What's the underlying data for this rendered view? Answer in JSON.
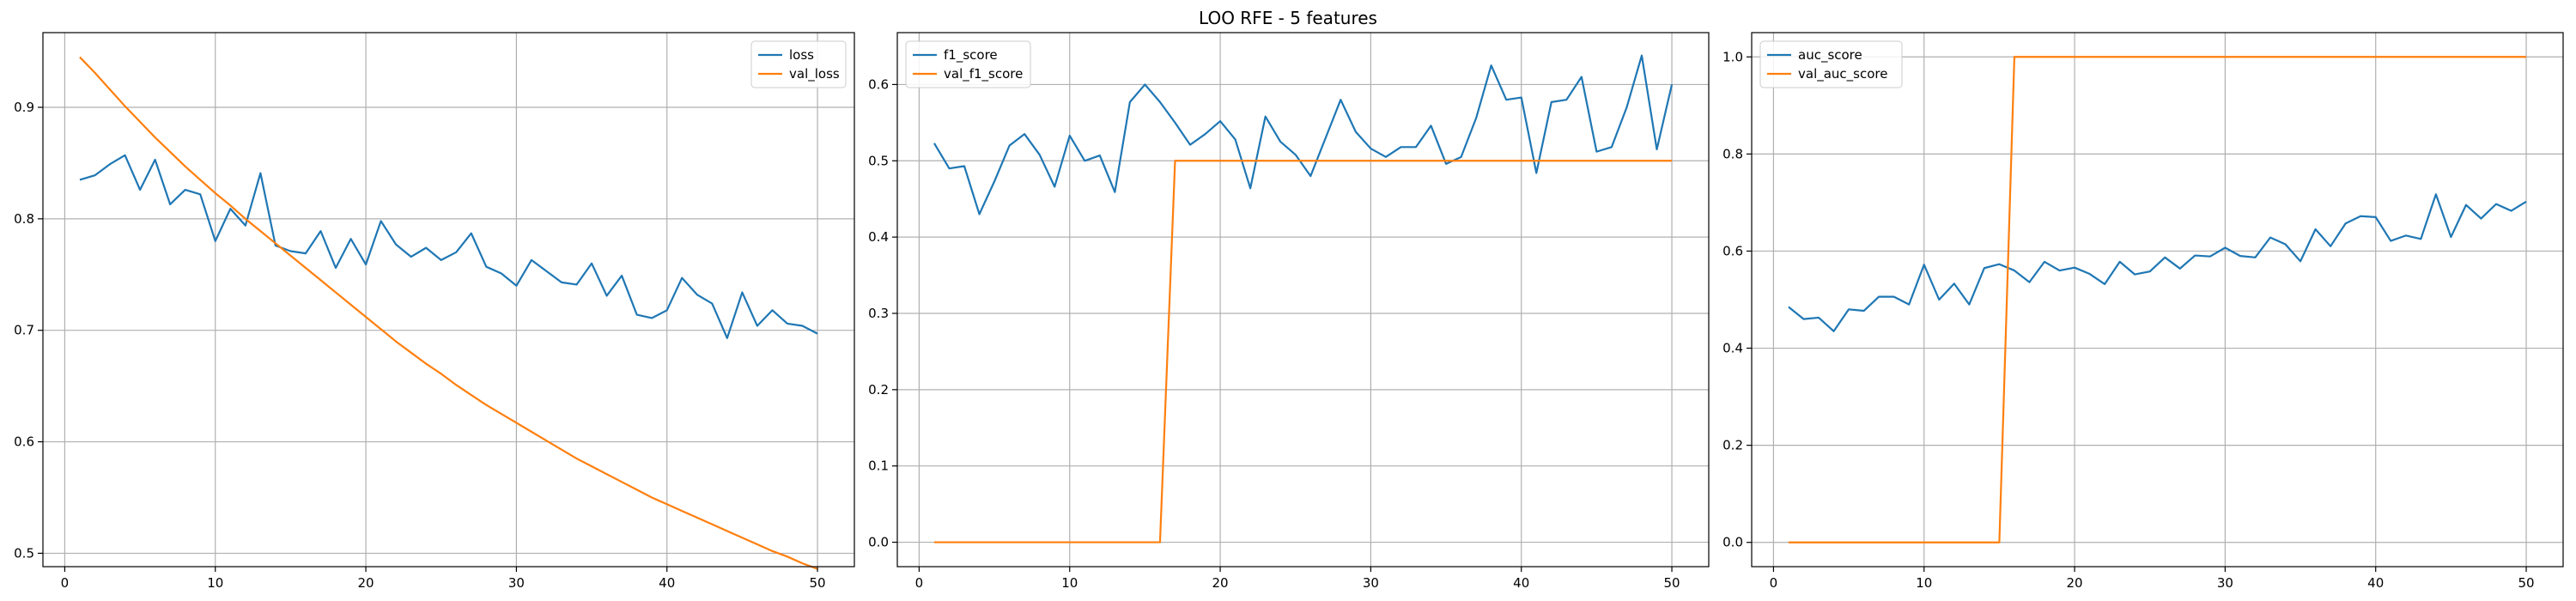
{
  "figure": {
    "title": "LOO RFE - 5 features"
  },
  "chart_data": [
    {
      "type": "line",
      "title": "",
      "xlabel": "",
      "ylabel": "",
      "grid": true,
      "legend": "top-right",
      "xlim": [
        -1.45,
        52.45
      ],
      "ylim": [
        0.488,
        0.967
      ],
      "xticks": [
        0,
        10,
        20,
        30,
        40,
        50
      ],
      "yticks": [
        0.5,
        0.6,
        0.7,
        0.8,
        0.9
      ],
      "ytick_labels": [
        "0.5",
        "0.6",
        "0.7",
        "0.8",
        "0.9"
      ],
      "x": [
        1,
        2,
        3,
        4,
        5,
        6,
        7,
        8,
        9,
        10,
        11,
        12,
        13,
        14,
        15,
        16,
        17,
        18,
        19,
        20,
        21,
        22,
        23,
        24,
        25,
        26,
        27,
        28,
        29,
        30,
        31,
        32,
        33,
        34,
        35,
        36,
        37,
        38,
        39,
        40,
        41,
        42,
        43,
        44,
        45,
        46,
        47,
        48,
        49,
        50
      ],
      "series": [
        {
          "name": "loss",
          "color": "#1f77b4",
          "values": [
            0.835,
            0.839,
            0.849,
            0.857,
            0.826,
            0.853,
            0.813,
            0.826,
            0.822,
            0.78,
            0.809,
            0.794,
            0.841,
            0.776,
            0.771,
            0.769,
            0.789,
            0.756,
            0.782,
            0.759,
            0.798,
            0.777,
            0.766,
            0.774,
            0.763,
            0.77,
            0.787,
            0.757,
            0.751,
            0.74,
            0.763,
            0.753,
            0.743,
            0.741,
            0.76,
            0.731,
            0.749,
            0.714,
            0.711,
            0.718,
            0.747,
            0.732,
            0.724,
            0.693,
            0.734,
            0.704,
            0.718,
            0.706,
            0.704,
            0.697
          ]
        },
        {
          "name": "val_loss",
          "color": "#ff7f0e",
          "values": [
            0.945,
            0.931,
            0.916,
            0.901,
            0.887,
            0.873,
            0.86,
            0.847,
            0.835,
            0.823,
            0.812,
            0.8,
            0.789,
            0.778,
            0.767,
            0.756,
            0.745,
            0.734,
            0.723,
            0.712,
            0.701,
            0.69,
            0.68,
            0.67,
            0.661,
            0.651,
            0.642,
            0.633,
            0.625,
            0.617,
            0.609,
            0.601,
            0.593,
            0.585,
            0.578,
            0.571,
            0.564,
            0.557,
            0.55,
            0.544,
            0.538,
            0.532,
            0.526,
            0.52,
            0.514,
            0.508,
            0.502,
            0.497,
            0.491,
            0.486
          ]
        }
      ]
    },
    {
      "type": "line",
      "title": "",
      "xlabel": "",
      "ylabel": "",
      "grid": true,
      "legend": "top-left",
      "xlim": [
        -1.45,
        52.45
      ],
      "ylim": [
        -0.032,
        0.668
      ],
      "xticks": [
        0,
        10,
        20,
        30,
        40,
        50
      ],
      "yticks": [
        0.0,
        0.1,
        0.2,
        0.3,
        0.4,
        0.5,
        0.6
      ],
      "ytick_labels": [
        "0.0",
        "0.1",
        "0.2",
        "0.3",
        "0.4",
        "0.5",
        "0.6"
      ],
      "x": [
        1,
        2,
        3,
        4,
        5,
        6,
        7,
        8,
        9,
        10,
        11,
        12,
        13,
        14,
        15,
        16,
        17,
        18,
        19,
        20,
        21,
        22,
        23,
        24,
        25,
        26,
        27,
        28,
        29,
        30,
        31,
        32,
        33,
        34,
        35,
        36,
        37,
        38,
        39,
        40,
        41,
        42,
        43,
        44,
        45,
        46,
        47,
        48,
        49,
        50
      ],
      "series": [
        {
          "name": "f1_score",
          "color": "#1f77b4",
          "values": [
            0.523,
            0.49,
            0.493,
            0.43,
            0.473,
            0.52,
            0.535,
            0.508,
            0.466,
            0.533,
            0.5,
            0.507,
            0.459,
            0.577,
            0.6,
            0.577,
            0.55,
            0.521,
            0.535,
            0.552,
            0.528,
            0.464,
            0.558,
            0.525,
            0.508,
            0.48,
            0.53,
            0.58,
            0.538,
            0.516,
            0.505,
            0.518,
            0.518,
            0.546,
            0.496,
            0.505,
            0.556,
            0.625,
            0.58,
            0.583,
            0.484,
            0.577,
            0.58,
            0.61,
            0.512,
            0.518,
            0.57,
            0.638,
            0.515,
            0.6
          ]
        },
        {
          "name": "val_f1_score",
          "color": "#ff7f0e",
          "values": [
            0,
            0,
            0,
            0,
            0,
            0,
            0,
            0,
            0,
            0,
            0,
            0,
            0,
            0,
            0,
            0,
            0.5,
            0.5,
            0.5,
            0.5,
            0.5,
            0.5,
            0.5,
            0.5,
            0.5,
            0.5,
            0.5,
            0.5,
            0.5,
            0.5,
            0.5,
            0.5,
            0.5,
            0.5,
            0.5,
            0.5,
            0.5,
            0.5,
            0.5,
            0.5,
            0.5,
            0.5,
            0.5,
            0.5,
            0.5,
            0.5,
            0.5,
            0.5,
            0.5,
            0.5
          ]
        }
      ]
    },
    {
      "type": "line",
      "title": "",
      "xlabel": "",
      "ylabel": "",
      "grid": true,
      "legend": "top-left",
      "xlim": [
        -1.45,
        52.45
      ],
      "ylim": [
        -0.05,
        1.05
      ],
      "xticks": [
        0,
        10,
        20,
        30,
        40,
        50
      ],
      "yticks": [
        0.0,
        0.2,
        0.4,
        0.6,
        0.8,
        1.0
      ],
      "ytick_labels": [
        "0.0",
        "0.2",
        "0.4",
        "0.6",
        "0.8",
        "1.0"
      ],
      "x": [
        1,
        2,
        3,
        4,
        5,
        6,
        7,
        8,
        9,
        10,
        11,
        12,
        13,
        14,
        15,
        16,
        17,
        18,
        19,
        20,
        21,
        22,
        23,
        24,
        25,
        26,
        27,
        28,
        29,
        30,
        31,
        32,
        33,
        34,
        35,
        36,
        37,
        38,
        39,
        40,
        41,
        42,
        43,
        44,
        45,
        46,
        47,
        48,
        49,
        50
      ],
      "series": [
        {
          "name": "auc_score",
          "color": "#1f77b4",
          "values": [
            0.485,
            0.46,
            0.463,
            0.435,
            0.48,
            0.477,
            0.506,
            0.506,
            0.49,
            0.572,
            0.5,
            0.533,
            0.49,
            0.565,
            0.573,
            0.56,
            0.536,
            0.578,
            0.56,
            0.566,
            0.553,
            0.532,
            0.578,
            0.552,
            0.558,
            0.587,
            0.564,
            0.591,
            0.589,
            0.607,
            0.59,
            0.587,
            0.628,
            0.614,
            0.579,
            0.645,
            0.61,
            0.657,
            0.672,
            0.67,
            0.621,
            0.632,
            0.625,
            0.717,
            0.629,
            0.695,
            0.667,
            0.697,
            0.683,
            0.702
          ]
        },
        {
          "name": "val_auc_score",
          "color": "#ff7f0e",
          "values": [
            0,
            0,
            0,
            0,
            0,
            0,
            0,
            0,
            0,
            0,
            0,
            0,
            0,
            0,
            0,
            1,
            1,
            1,
            1,
            1,
            1,
            1,
            1,
            1,
            1,
            1,
            1,
            1,
            1,
            1,
            1,
            1,
            1,
            1,
            1,
            1,
            1,
            1,
            1,
            1,
            1,
            1,
            1,
            1,
            1,
            1,
            1,
            1,
            1,
            1
          ]
        }
      ]
    }
  ]
}
